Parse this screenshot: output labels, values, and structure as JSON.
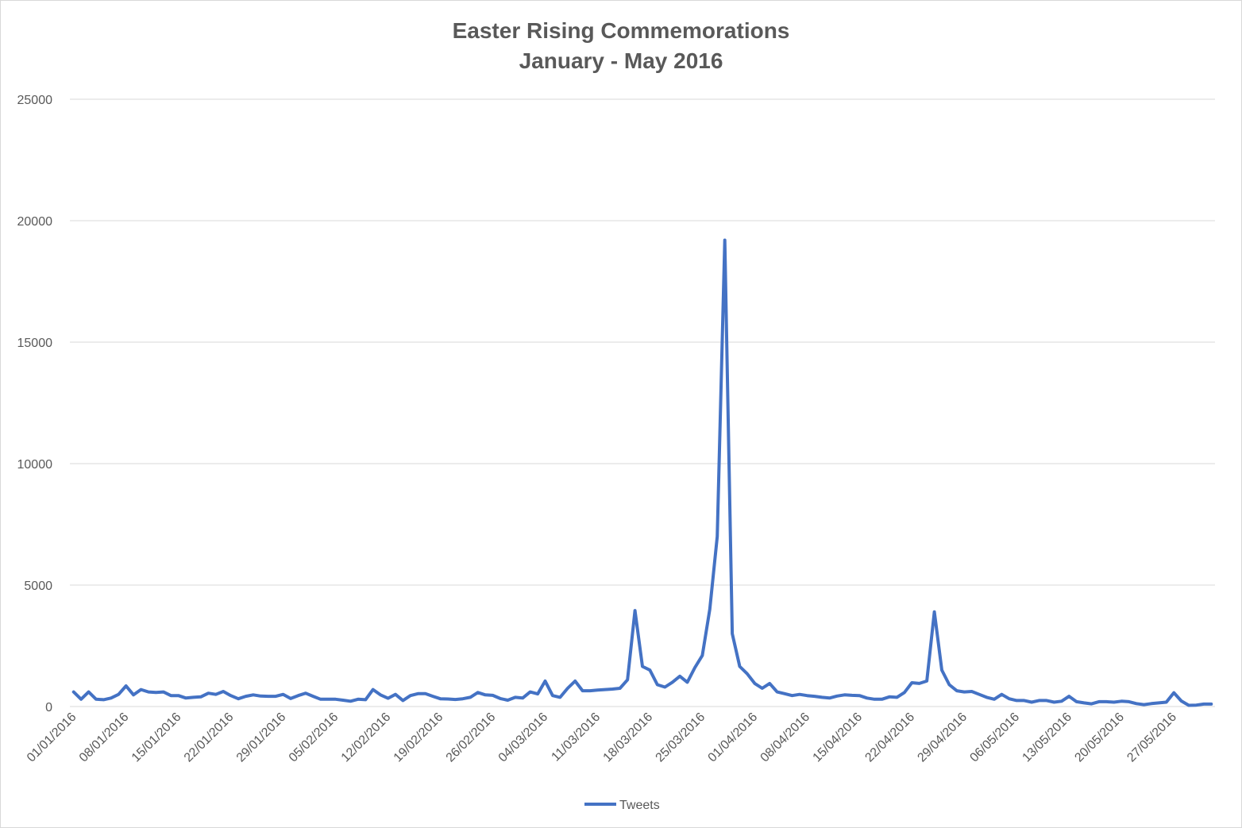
{
  "chart_data": {
    "type": "line",
    "title": "Easter Rising Commemorations",
    "subtitle": "January - May 2016",
    "xlabel": "",
    "ylabel": "",
    "ylim": [
      0,
      25000
    ],
    "yticks": [
      "0",
      "5000",
      "10000",
      "15000",
      "20000",
      "25000"
    ],
    "grid": true,
    "legend_position": "bottom",
    "x_tick_labels": [
      "01/01/2016",
      "08/01/2016",
      "15/01/2016",
      "22/01/2016",
      "29/01/2016",
      "05/02/2016",
      "12/02/2016",
      "19/02/2016",
      "26/02/2016",
      "04/03/2016",
      "11/03/2016",
      "18/03/2016",
      "25/03/2016",
      "01/04/2016",
      "08/04/2016",
      "15/04/2016",
      "22/04/2016",
      "29/04/2016",
      "06/05/2016",
      "13/05/2016",
      "20/05/2016",
      "27/05/2016"
    ],
    "x_start": "01/01/2016",
    "x_end": "31/05/2016",
    "series": [
      {
        "name": "Tweets",
        "color": "#4472c4",
        "values": [
          600,
          300,
          600,
          300,
          280,
          350,
          500,
          850,
          480,
          700,
          600,
          580,
          600,
          450,
          450,
          350,
          380,
          400,
          550,
          500,
          620,
          450,
          320,
          420,
          480,
          430,
          420,
          420,
          500,
          330,
          450,
          550,
          420,
          300,
          300,
          300,
          260,
          220,
          300,
          280,
          700,
          480,
          340,
          500,
          250,
          450,
          530,
          530,
          420,
          320,
          310,
          290,
          320,
          380,
          580,
          480,
          460,
          330,
          260,
          380,
          350,
          600,
          520,
          1050,
          450,
          380,
          750,
          1050,
          650,
          650,
          680,
          700,
          720,
          750,
          1100,
          3950,
          1650,
          1500,
          900,
          800,
          1000,
          1250,
          1000,
          1600,
          2100,
          4000,
          7000,
          19200,
          3000,
          1650,
          1350,
          950,
          750,
          950,
          600,
          530,
          450,
          500,
          450,
          420,
          380,
          350,
          430,
          480,
          460,
          450,
          350,
          300,
          300,
          400,
          380,
          580,
          980,
          950,
          1050,
          3900,
          1500,
          900,
          650,
          600,
          620,
          500,
          380,
          300,
          500,
          320,
          250,
          250,
          180,
          250,
          250,
          180,
          220,
          420,
          200,
          150,
          110,
          200,
          200,
          180,
          220,
          200,
          120,
          80,
          120,
          150,
          180,
          570,
          230,
          50,
          60,
          100,
          100
        ]
      }
    ]
  }
}
